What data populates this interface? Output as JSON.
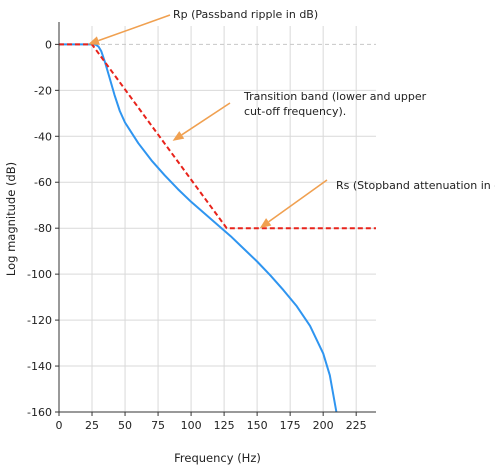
{
  "chart_data": {
    "type": "line",
    "title": "",
    "xlabel": "Frequency (Hz)",
    "ylabel": "Log magnitude (dB)",
    "xlim": [
      0,
      240
    ],
    "ylim": [
      -160,
      8
    ],
    "xticks": [
      0,
      25,
      50,
      75,
      100,
      125,
      150,
      175,
      200,
      225
    ],
    "yticks": [
      0,
      -20,
      -40,
      -60,
      -80,
      -100,
      -120,
      -140,
      -160
    ],
    "grid": true,
    "series": [
      {
        "color": "#2f95f0",
        "style": "solid",
        "x": [
          0,
          25,
          28,
          30,
          32,
          35,
          38,
          42,
          46,
          50,
          60,
          70,
          80,
          90,
          100,
          110,
          120,
          130,
          140,
          150,
          160,
          170,
          180,
          190,
          200,
          205,
          210
        ],
        "y": [
          0,
          0,
          -0.2,
          -1,
          -3,
          -8,
          -14,
          -22,
          -29,
          -34,
          -43,
          -50.5,
          -57,
          -63,
          -68.5,
          -73.5,
          -78.5,
          -83.5,
          -89,
          -94.5,
          -100.5,
          -107,
          -114,
          -122.5,
          -134.5,
          -144,
          -160
        ]
      },
      {
        "color": "#e8231b",
        "style": "dashed",
        "x": [
          0,
          25,
          127,
          240
        ],
        "y": [
          0,
          0,
          -80,
          -80
        ]
      }
    ],
    "annotations": [
      {
        "text": "Rp (Passband ripple in dB)",
        "lines": [
          "Rp (Passband ripple in dB)"
        ],
        "arrow_tip": [
          22,
          0
        ]
      },
      {
        "text": "Transition band (lower and upper cut-off frequency).",
        "lines": [
          "Transition band (lower and upper",
          "cut-off frequency)."
        ],
        "arrow_tip": [
          86,
          -42
        ]
      },
      {
        "text": "Rs (Stopband attenuation in dB)",
        "lines": [
          "Rs (Stopband attenuation in dB)"
        ],
        "arrow_tip": [
          152,
          -80
        ]
      }
    ],
    "colors": {
      "arrow": "#f0a050",
      "grid": "#d9d9d9",
      "zero_line": "#c8c8c8"
    }
  }
}
